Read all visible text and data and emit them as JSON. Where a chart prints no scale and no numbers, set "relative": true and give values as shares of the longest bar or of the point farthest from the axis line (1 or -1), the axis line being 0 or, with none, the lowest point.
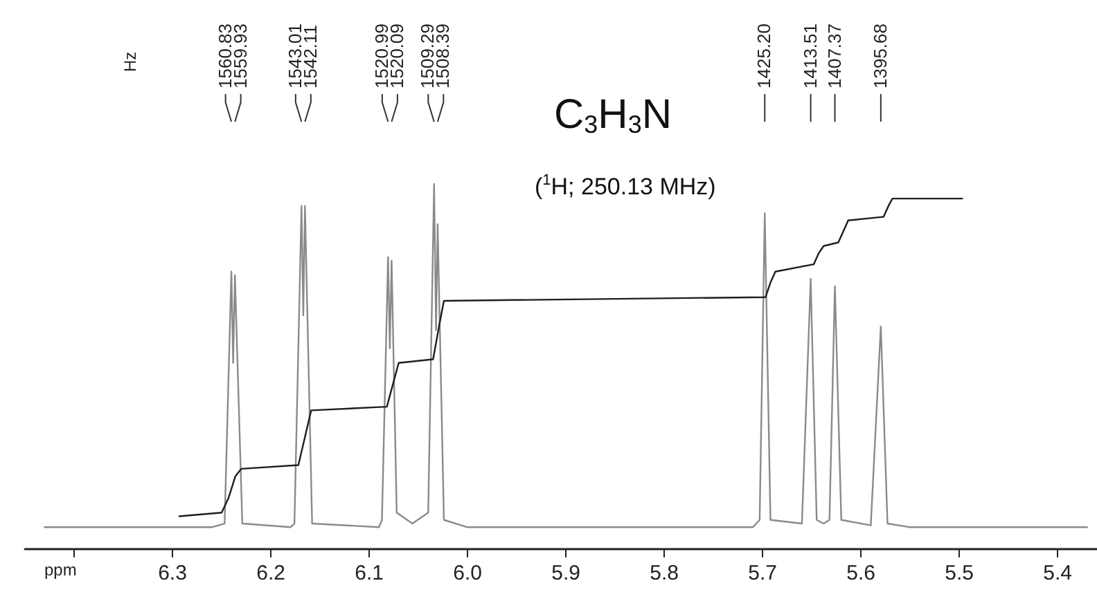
{
  "chart_data": {
    "type": "line",
    "title": "C$_{3}$H$_{3}$N",
    "subtitle": "($^{1}$H; 250.13 MHz)",
    "xlabel": "ppm",
    "relative": true,
    "tick_labels": "x",
    "marker": "none",
    "line_style": "solid",
    "xlim": [
      6.45,
      5.36
    ],
    "xticks": [
      {
        "value": 6.4,
        "label": null
      },
      6.3,
      6.2,
      6.1,
      {
        "value": 6.0,
        "label": "6.0"
      },
      5.9,
      5.8,
      5.7,
      5.6,
      5.5,
      5.4
    ],
    "annotations": [
      "Hz",
      {
        "text": "1560.83",
        "x": 6.2401
      },
      {
        "text": "1559.93",
        "x": 6.2365
      },
      {
        "text": "1543.01",
        "x": 6.1688
      },
      {
        "text": "1542.11",
        "x": 6.1653
      },
      {
        "text": "1520.99",
        "x": 6.0808
      },
      {
        "text": "1520.09",
        "x": 6.0772
      },
      {
        "text": "1509.29",
        "x": 6.034
      },
      {
        "text": "1508.39",
        "x": 6.0304
      },
      {
        "text": "1425.20",
        "x": 5.6978
      },
      {
        "text": "1413.51",
        "x": 5.6511
      },
      {
        "text": "1407.37",
        "x": 5.6265
      },
      {
        "text": "1395.68",
        "x": 5.5798
      }
    ],
    "series": [
      {
        "color": "#8a8a8a",
        "x": [
          6.43,
          6.26,
          6.247,
          6.2401,
          6.2383,
          6.2365,
          6.229,
          6.18,
          6.176,
          6.1688,
          6.167,
          6.1653,
          6.158,
          6.09,
          6.087,
          6.0808,
          6.079,
          6.0772,
          6.072,
          6.056,
          6.04,
          6.034,
          6.032,
          6.0304,
          6.024,
          6.0,
          5.71,
          5.703,
          5.6978,
          5.692,
          5.66,
          5.6511,
          5.645,
          5.638,
          5.632,
          5.6265,
          5.62,
          5.59,
          5.5798,
          5.573,
          5.55,
          5.37
        ],
        "values": [
          0.06,
          0.06,
          0.07,
          0.76,
          0.51,
          0.75,
          0.07,
          0.06,
          0.07,
          0.94,
          0.64,
          0.94,
          0.07,
          0.06,
          0.08,
          0.8,
          0.55,
          0.79,
          0.1,
          0.07,
          0.1,
          1.0,
          0.6,
          0.89,
          0.08,
          0.06,
          0.06,
          0.08,
          0.92,
          0.08,
          0.07,
          0.74,
          0.08,
          0.07,
          0.08,
          0.72,
          0.08,
          0.065,
          0.61,
          0.07,
          0.06,
          0.06
        ]
      },
      {
        "color": "#1e1e1e",
        "x": [
          6.293,
          6.25,
          6.243,
          6.236,
          6.23,
          6.172,
          6.165,
          6.159,
          6.082,
          6.076,
          6.07,
          6.035,
          6.029,
          6.024,
          5.697,
          5.692,
          5.687,
          5.648,
          5.643,
          5.638,
          5.623,
          5.618,
          5.613,
          5.577,
          5.572,
          5.568,
          5.497
        ],
        "values": [
          0.09,
          0.1,
          0.14,
          0.2,
          0.22,
          0.23,
          0.31,
          0.38,
          0.39,
          0.45,
          0.51,
          0.52,
          0.61,
          0.68,
          0.69,
          0.73,
          0.76,
          0.78,
          0.81,
          0.83,
          0.84,
          0.87,
          0.9,
          0.91,
          0.94,
          0.96,
          0.96
        ]
      }
    ]
  }
}
